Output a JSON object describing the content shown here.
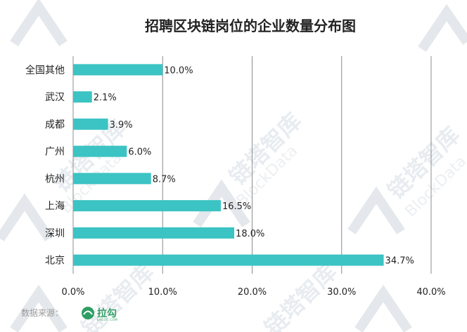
{
  "chart_data": {
    "type": "bar",
    "orientation": "horizontal",
    "title": "招聘区块链岗位的企业数量分布图",
    "categories": [
      "全国其他",
      "武汉",
      "成都",
      "广州",
      "杭州",
      "上海",
      "深圳",
      "北京"
    ],
    "values": [
      10.0,
      2.1,
      3.9,
      6.0,
      8.7,
      16.5,
      18.0,
      34.7
    ],
    "value_labels": [
      "10.0%",
      "2.1%",
      "3.9%",
      "6.0%",
      "8.7%",
      "16.5%",
      "18.0%",
      "34.7%"
    ],
    "xlim": [
      0,
      40
    ],
    "x_ticks": [
      0,
      10,
      20,
      30,
      40
    ],
    "x_tick_labels": [
      "0.0%",
      "10.0%",
      "20.0%",
      "30.0%",
      "40.0%"
    ],
    "xlabel": "",
    "ylabel": "",
    "grid": "vertical",
    "bar_color": "#3cc3c3",
    "grid_color": "#8c8c8c"
  },
  "source": {
    "label": "数据来源：",
    "brand": "拉勾",
    "brand_sub": "LAGOU.COM",
    "brand_color": "#2f9e62"
  },
  "watermark": {
    "cn": "链塔智库",
    "en": "BlockData"
  }
}
